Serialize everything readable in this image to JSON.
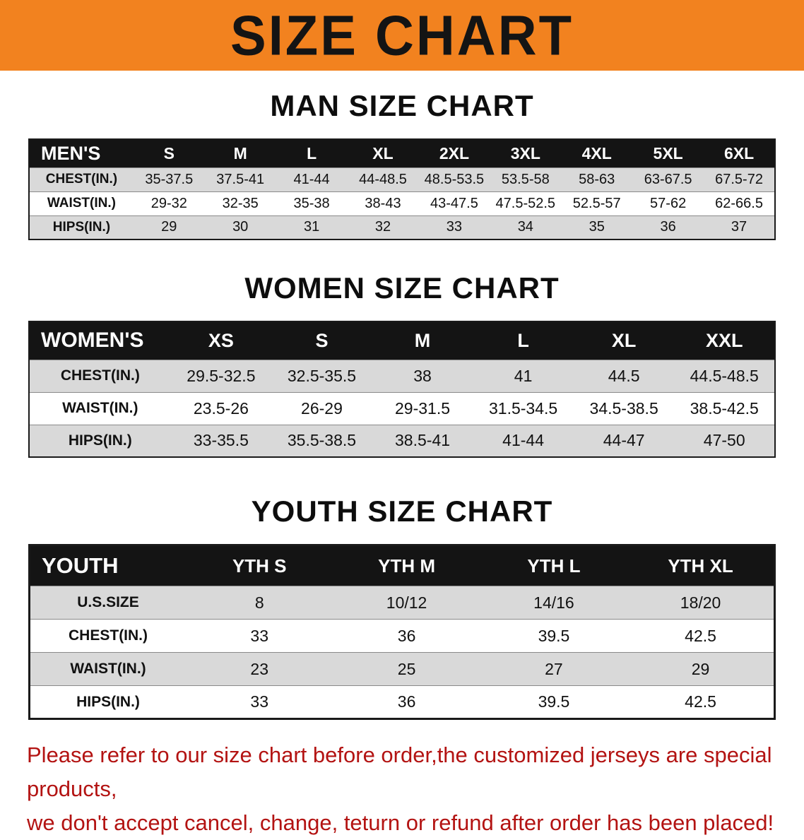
{
  "banner": {
    "title": "SIZE CHART"
  },
  "colors": {
    "banner_bg": "#f2821f",
    "table_header_bg": "#141414",
    "row_stripe": "#d9d9d9",
    "disclaimer_text": "#b31312"
  },
  "chart_data": [
    {
      "type": "table",
      "title": "MAN SIZE CHART",
      "columns": [
        "MEN'S",
        "S",
        "M",
        "L",
        "XL",
        "2XL",
        "3XL",
        "4XL",
        "5XL",
        "6XL"
      ],
      "rows": [
        [
          "CHEST(IN.)",
          "35-37.5",
          "37.5-41",
          "41-44",
          "44-48.5",
          "48.5-53.5",
          "53.5-58",
          "58-63",
          "63-67.5",
          "67.5-72"
        ],
        [
          "WAIST(IN.)",
          "29-32",
          "32-35",
          "35-38",
          "38-43",
          "43-47.5",
          "47.5-52.5",
          "52.5-57",
          "57-62",
          "62-66.5"
        ],
        [
          "HIPS(IN.)",
          "29",
          "30",
          "31",
          "32",
          "33",
          "34",
          "35",
          "36",
          "37"
        ]
      ]
    },
    {
      "type": "table",
      "title": "WOMEN SIZE CHART",
      "columns": [
        "WOMEN'S",
        "XS",
        "S",
        "M",
        "L",
        "XL",
        "XXL"
      ],
      "rows": [
        [
          "CHEST(IN.)",
          "29.5-32.5",
          "32.5-35.5",
          "38",
          "41",
          "44.5",
          "44.5-48.5"
        ],
        [
          "WAIST(IN.)",
          "23.5-26",
          "26-29",
          "29-31.5",
          "31.5-34.5",
          "34.5-38.5",
          "38.5-42.5"
        ],
        [
          "HIPS(IN.)",
          "33-35.5",
          "35.5-38.5",
          "38.5-41",
          "41-44",
          "44-47",
          "47-50"
        ]
      ]
    },
    {
      "type": "table",
      "title": "YOUTH SIZE CHART",
      "columns": [
        "YOUTH",
        "YTH S",
        "YTH M",
        "YTH L",
        "YTH XL"
      ],
      "rows": [
        [
          "U.S.SIZE",
          "8",
          "10/12",
          "14/16",
          "18/20"
        ],
        [
          "CHEST(IN.)",
          "33",
          "36",
          "39.5",
          "42.5"
        ],
        [
          "WAIST(IN.)",
          "23",
          "25",
          "27",
          "29"
        ],
        [
          "HIPS(IN.)",
          "33",
          "36",
          "39.5",
          "42.5"
        ]
      ]
    }
  ],
  "disclaimer": {
    "line1": "Please refer to our size chart before order,the customized jerseys are special products,",
    "line2": "we don't accept cancel, change, teturn or refund after order has been placed!"
  }
}
